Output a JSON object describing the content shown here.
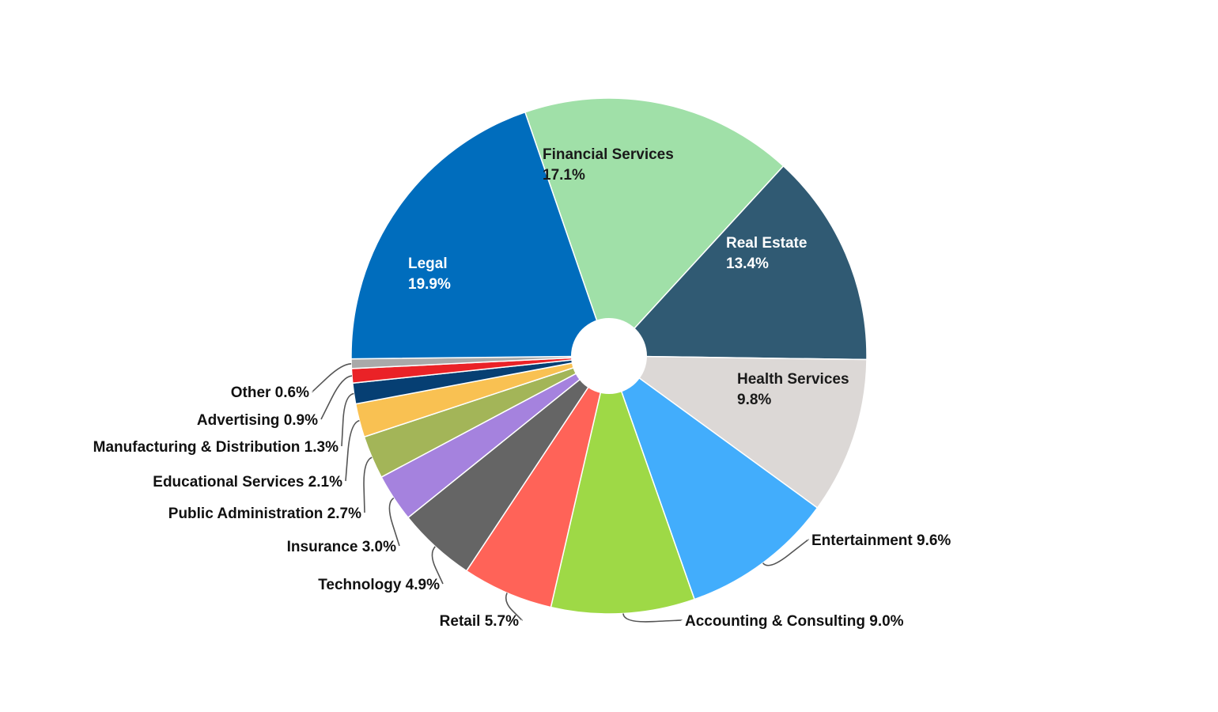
{
  "chart_data": {
    "type": "pie",
    "donut": true,
    "start": "top, clockwise",
    "slices": [
      {
        "name": "Financial Services",
        "value": 17.1,
        "value_label": "17.1%",
        "color": "#a0e0a8",
        "label_style": "inside",
        "text_color": "#1a1a1a"
      },
      {
        "name": "Real Estate",
        "value": 13.4,
        "value_label": "13.4%",
        "color": "#305a73",
        "label_style": "inside",
        "text_color": "#ffffff"
      },
      {
        "name": "Health Services",
        "value": 9.8,
        "value_label": "9.8%",
        "color": "#dcd8d6",
        "label_style": "inside",
        "text_color": "#1a1a1a"
      },
      {
        "name": "Entertainment",
        "value": 9.6,
        "value_label": "9.6%",
        "color": "#42adfc",
        "label_style": "outside"
      },
      {
        "name": "Accounting & Consulting",
        "value": 9.0,
        "value_label": "9.0%",
        "color": "#9ed946",
        "label_style": "outside"
      },
      {
        "name": "Retail",
        "value": 5.7,
        "value_label": "5.7%",
        "color": "#ff6358",
        "label_style": "outside"
      },
      {
        "name": "Technology",
        "value": 4.9,
        "value_label": "4.9%",
        "color": "#656565",
        "label_style": "outside"
      },
      {
        "name": "Insurance",
        "value": 3.0,
        "value_label": "3.0%",
        "color": "#a582de",
        "label_style": "outside"
      },
      {
        "name": "Public Administration",
        "value": 2.7,
        "value_label": "2.7%",
        "color": "#a3b558",
        "label_style": "outside"
      },
      {
        "name": "Educational Services",
        "value": 2.1,
        "value_label": "2.1%",
        "color": "#f9c152",
        "label_style": "outside"
      },
      {
        "name": "Manufacturing & Distribution",
        "value": 1.3,
        "value_label": "1.3%",
        "color": "#063f73",
        "label_style": "outside"
      },
      {
        "name": "Advertising",
        "value": 0.9,
        "value_label": "0.9%",
        "color": "#ea2227",
        "label_style": "outside"
      },
      {
        "name": "Other",
        "value": 0.6,
        "value_label": "0.6%",
        "color": "#a9a9a9",
        "label_style": "outside"
      },
      {
        "name": "Legal",
        "value": 19.9,
        "value_label": "19.9%",
        "color": "#006dbd",
        "label_style": "inside",
        "text_color": "#ffffff"
      }
    ]
  }
}
